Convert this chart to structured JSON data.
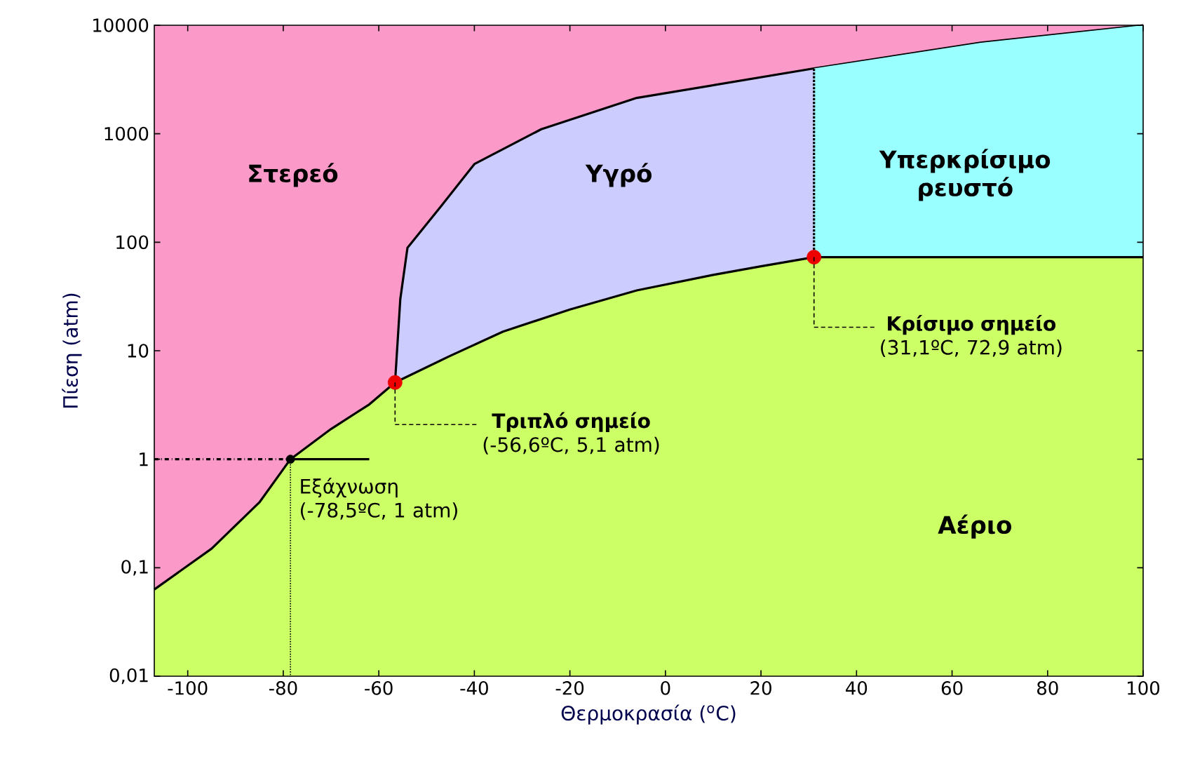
{
  "chart_data": {
    "type": "area",
    "xlabel": "Θερμοκρασία ($^{o}$C)",
    "ylabel": "Πίεση (atm)",
    "xlim": [
      -107,
      100
    ],
    "ylim": [
      0.01,
      10000
    ],
    "log": "y",
    "grid": false,
    "xticks": [
      -100,
      -80,
      -60,
      -40,
      -20,
      0,
      20,
      40,
      60,
      80,
      100
    ],
    "yticks": [
      {
        "value": 0.01,
        "label": "0,01"
      },
      {
        "value": 0.1,
        "label": "0,1"
      },
      1,
      10,
      100,
      1000,
      10000
    ],
    "series": [
      {
        "type": "area",
        "color": "#fb99c9",
        "x": [
          -107,
          100
        ],
        "values": [
          10000,
          10000
        ]
      },
      {
        "type": "area",
        "color": "#ccccff",
        "line_style": "solid",
        "x": [
          -56.6,
          -55.5,
          -54,
          -47,
          -40,
          -26,
          -6,
          31.1,
          66,
          100
        ],
        "values": [
          5.1,
          30,
          89,
          214,
          525,
          1100,
          2140,
          4000,
          6900,
          10000
        ]
      },
      {
        "type": "area",
        "color": "#99ffff",
        "x": [
          31.1,
          66,
          100
        ],
        "values": [
          4000,
          6900,
          10000
        ]
      },
      {
        "type": "area",
        "color": "#ccff66",
        "line_style": "solid",
        "x": [
          -107,
          -95,
          -85,
          -78.5,
          -70,
          -62,
          -56.6,
          -45,
          -34,
          -20,
          -6,
          10,
          20,
          31.1,
          100
        ],
        "values": [
          0.063,
          0.15,
          0.4,
          1,
          1.9,
          3.2,
          5.1,
          9,
          15,
          24,
          36,
          50,
          60,
          72.9,
          72.9
        ]
      },
      {
        "type": "line",
        "color": "#000000",
        "line_style": "dotted",
        "x": [
          31.1,
          31.1
        ],
        "values": [
          72.9,
          4000
        ]
      },
      {
        "type": "line",
        "color": "#000000",
        "line_style": "dashed",
        "x": [
          -107,
          -78.5
        ],
        "values": [
          1,
          1
        ]
      },
      {
        "type": "line",
        "color": "#000000",
        "line_style": "solid",
        "x": [
          -78.5,
          -62
        ],
        "values": [
          1,
          1
        ]
      },
      {
        "type": "scatter",
        "color": "#ee0000",
        "marker": "circle",
        "x": [
          -56.6,
          31.1
        ],
        "values": [
          5.1,
          72.9
        ]
      },
      {
        "type": "scatter",
        "color": "#000000",
        "marker": "circle",
        "x": [
          -78.5
        ],
        "values": [
          1
        ]
      }
    ],
    "annotations": [
      "Στερεό",
      "Υγρό",
      "Υπερκρίσιμο ρευστό",
      "Αέριο",
      {
        "text": "**Τριπλό σημείο** (-56,6ºC, 5,1 atm)",
        "x": -56.6,
        "y": 5.1
      },
      {
        "text": "**Κρίσιμο σημείο** (31,1ºC, 72,9 atm)",
        "x": 31.1,
        "y": 72.9
      },
      {
        "text": "Εξάχνωση (-78,5ºC, 1 atm)",
        "x": -78.5,
        "y": 1
      }
    ]
  }
}
